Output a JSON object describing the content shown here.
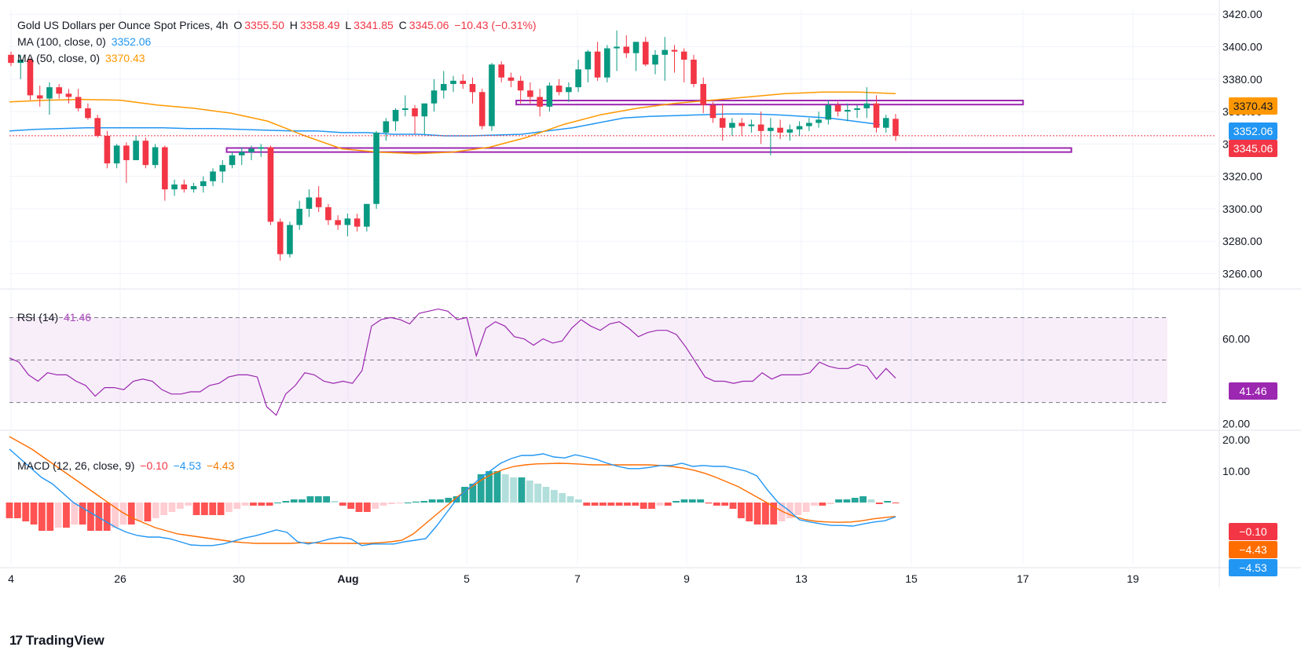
{
  "header": {
    "symbol": "Gold US Dollars per Ounce Spot Prices, 4h",
    "o_label": "O",
    "o_value": "3355.50",
    "h_label": "H",
    "h_value": "3358.49",
    "l_label": "L",
    "l_value": "3341.85",
    "c_label": "C",
    "c_value": "3345.06",
    "change": "−10.43 (−0.31%)"
  },
  "ma100": {
    "label": "MA (100, close, 0)",
    "value": "3352.06"
  },
  "ma50": {
    "label": "MA (50, close, 0)",
    "value": "3370.43"
  },
  "rsi": {
    "label": "RSI (14)",
    "value": "41.46"
  },
  "macd": {
    "label": "MACD (12, 26, close, 9)",
    "hist": "−0.10",
    "macd": "−4.53",
    "signal": "−4.43"
  },
  "price_tags": {
    "ma50": "3370.43",
    "ma100": "3352.06",
    "close": "3345.06"
  },
  "macd_tags": {
    "hist": "−0.10",
    "signal": "−4.43",
    "macd": "−4.53"
  },
  "footer": {
    "brand": "TradingView",
    "logo": "17"
  },
  "colors": {
    "up": "#089981",
    "down": "#f23645",
    "ma100": "#2196f3",
    "ma50": "#ff9800",
    "rsi": "#9c27b0",
    "macd": "#2196f3",
    "signal": "#ff6d00",
    "hist_up_strong": "#26a69a",
    "hist_up_weak": "#b2dfdb",
    "hist_dn_strong": "#ff5252",
    "hist_dn_weak": "#ffcdd2",
    "zone": "#9c27b0"
  },
  "chart_data": [
    {
      "type": "candlestick",
      "title": "Gold US Dollars per Ounce Spot Prices, 4h",
      "x_ticks": [
        "4",
        "26",
        "30",
        "Aug",
        "5",
        "7",
        "9",
        "13",
        "15",
        "17",
        "19"
      ],
      "y_ticks": [
        "3420.00",
        "3400.00",
        "3380.00",
        "3360.00",
        "3340.00",
        "3320.00",
        "3300.00",
        "3280.00",
        "3260.00"
      ],
      "ylim": [
        3252,
        3423
      ],
      "candles": [
        [
          3395,
          3397,
          3388,
          3390
        ],
        [
          3390,
          3395,
          3380,
          3392
        ],
        [
          3392,
          3393,
          3367,
          3370
        ],
        [
          3370,
          3376,
          3363,
          3368
        ],
        [
          3368,
          3378,
          3358,
          3375
        ],
        [
          3375,
          3377,
          3368,
          3371
        ],
        [
          3371,
          3374,
          3365,
          3369
        ],
        [
          3369,
          3374,
          3360,
          3362
        ],
        [
          3362,
          3365,
          3355,
          3356
        ],
        [
          3356,
          3358,
          3344,
          3345
        ],
        [
          3345,
          3348,
          3325,
          3328
        ],
        [
          3328,
          3340,
          3325,
          3339
        ],
        [
          3339,
          3341,
          3316,
          3330
        ],
        [
          3330,
          3345,
          3330,
          3342
        ],
        [
          3342,
          3344,
          3325,
          3327
        ],
        [
          3327,
          3340,
          3325,
          3338
        ],
        [
          3338,
          3339,
          3305,
          3312
        ],
        [
          3312,
          3318,
          3308,
          3315
        ],
        [
          3315,
          3318,
          3310,
          3312
        ],
        [
          3312,
          3316,
          3310,
          3314
        ],
        [
          3314,
          3320,
          3310,
          3317
        ],
        [
          3317,
          3325,
          3314,
          3323
        ],
        [
          3323,
          3330,
          3316,
          3327
        ],
        [
          3327,
          3335,
          3325,
          3333
        ],
        [
          3333,
          3338,
          3327,
          3335
        ],
        [
          3335,
          3339,
          3330,
          3337
        ],
        [
          3337,
          3340,
          3332,
          3338
        ],
        [
          3338,
          3339,
          3290,
          3292
        ],
        [
          3292,
          3294,
          3268,
          3272
        ],
        [
          3272,
          3292,
          3270,
          3290
        ],
        [
          3290,
          3305,
          3287,
          3300
        ],
        [
          3300,
          3312,
          3295,
          3307
        ],
        [
          3307,
          3314,
          3298,
          3301
        ],
        [
          3301,
          3303,
          3290,
          3293
        ],
        [
          3293,
          3296,
          3287,
          3290
        ],
        [
          3290,
          3297,
          3283,
          3294
        ],
        [
          3294,
          3297,
          3286,
          3289
        ],
        [
          3289,
          3303,
          3286,
          3303
        ],
        [
          3303,
          3348,
          3300,
          3347
        ],
        [
          3347,
          3356,
          3342,
          3354
        ],
        [
          3354,
          3362,
          3348,
          3361
        ],
        [
          3361,
          3370,
          3357,
          3362
        ],
        [
          3362,
          3364,
          3346,
          3357
        ],
        [
          3357,
          3365,
          3346,
          3365
        ],
        [
          3365,
          3380,
          3360,
          3373
        ],
        [
          3373,
          3385,
          3368,
          3377
        ],
        [
          3377,
          3382,
          3372,
          3379
        ],
        [
          3379,
          3383,
          3374,
          3377
        ],
        [
          3377,
          3381,
          3365,
          3372
        ],
        [
          3372,
          3374,
          3349,
          3351
        ],
        [
          3351,
          3390,
          3348,
          3389
        ],
        [
          3389,
          3391,
          3378,
          3381
        ],
        [
          3381,
          3384,
          3375,
          3379
        ],
        [
          3379,
          3382,
          3365,
          3373
        ],
        [
          3373,
          3378,
          3365,
          3369
        ],
        [
          3369,
          3374,
          3357,
          3363
        ],
        [
          3363,
          3378,
          3360,
          3376
        ],
        [
          3376,
          3380,
          3370,
          3372
        ],
        [
          3372,
          3378,
          3366,
          3375
        ],
        [
          3375,
          3392,
          3372,
          3386
        ],
        [
          3386,
          3398,
          3378,
          3397
        ],
        [
          3397,
          3403,
          3379,
          3381
        ],
        [
          3381,
          3401,
          3378,
          3399
        ],
        [
          3399,
          3410,
          3385,
          3400
        ],
        [
          3400,
          3407,
          3393,
          3396
        ],
        [
          3396,
          3402,
          3385,
          3403
        ],
        [
          3403,
          3406,
          3388,
          3389
        ],
        [
          3389,
          3398,
          3383,
          3395
        ],
        [
          3395,
          3406,
          3379,
          3398
        ],
        [
          3398,
          3401,
          3384,
          3397
        ],
        [
          3397,
          3399,
          3378,
          3392
        ],
        [
          3392,
          3395,
          3375,
          3377
        ],
        [
          3377,
          3381,
          3359,
          3364
        ],
        [
          3364,
          3366,
          3353,
          3356
        ],
        [
          3356,
          3365,
          3342,
          3350
        ],
        [
          3350,
          3356,
          3345,
          3353
        ],
        [
          3353,
          3356,
          3345,
          3351
        ],
        [
          3351,
          3355,
          3347,
          3352
        ],
        [
          3352,
          3360,
          3340,
          3348
        ],
        [
          3348,
          3356,
          3333,
          3350
        ],
        [
          3350,
          3355,
          3343,
          3347
        ],
        [
          3347,
          3352,
          3342,
          3349
        ],
        [
          3349,
          3354,
          3345,
          3351
        ],
        [
          3351,
          3356,
          3348,
          3353
        ],
        [
          3353,
          3360,
          3350,
          3355
        ],
        [
          3355,
          3367,
          3352,
          3364
        ],
        [
          3364,
          3366,
          3357,
          3360
        ],
        [
          3360,
          3365,
          3354,
          3361
        ],
        [
          3361,
          3364,
          3356,
          3362
        ],
        [
          3362,
          3375,
          3356,
          3365
        ],
        [
          3365,
          3370,
          3347,
          3350
        ],
        [
          3350,
          3358,
          3347,
          3356
        ],
        [
          3355.5,
          3358.49,
          3341.85,
          3345.06
        ]
      ],
      "ma100": [
        3348,
        3349,
        3349.5,
        3350,
        3350,
        3350,
        3350,
        3349.5,
        3349.5,
        3349,
        3348.5,
        3348,
        3348,
        3347,
        3347,
        3346,
        3346,
        3345,
        3345,
        3345.5,
        3346,
        3348,
        3350,
        3353,
        3356,
        3357,
        3357.5,
        3358,
        3358.5,
        3358.5,
        3358,
        3357,
        3356,
        3354,
        3352
      ],
      "ma50": [
        3366,
        3367,
        3367.5,
        3367,
        3364,
        3362,
        3359,
        3354,
        3345,
        3337,
        3335,
        3334,
        3335,
        3338,
        3344,
        3352,
        3358,
        3362,
        3365,
        3367,
        3369,
        3371,
        3372,
        3372,
        3371
      ],
      "zones": [
        {
          "y_top": 3366.8,
          "y_bottom": 3364.3,
          "x_start": 0.42,
          "x_end": 0.84
        },
        {
          "y_top": 3337.5,
          "y_bottom": 3335.0,
          "x_start": 0.18,
          "x_end": 0.88
        }
      ],
      "last_price": 3345.06
    },
    {
      "type": "line",
      "title": "RSI (14)",
      "y_ticks": [
        "60.00",
        "20.00"
      ],
      "ylim": [
        18,
        82
      ],
      "bands": [
        70,
        50,
        30
      ],
      "values": [
        51,
        49,
        43,
        40,
        44,
        43,
        43,
        40,
        38,
        33,
        37,
        37,
        36,
        40,
        41,
        40,
        36,
        34,
        34,
        35,
        35,
        38,
        39,
        42,
        43,
        43,
        42,
        28,
        24,
        34,
        38,
        44,
        43,
        40,
        39,
        40,
        39,
        45,
        66,
        69,
        70,
        69,
        67,
        72,
        73,
        74,
        73,
        69,
        70,
        52,
        65,
        68,
        66,
        61,
        60,
        57,
        60,
        58,
        59,
        65,
        69,
        66,
        64,
        67,
        68,
        65,
        61,
        63,
        64,
        64,
        62,
        56,
        49,
        42,
        40,
        40,
        39,
        40,
        40,
        44,
        41,
        43,
        43,
        43,
        44,
        49,
        47,
        46,
        46,
        48,
        47,
        41,
        46,
        41.46
      ]
    },
    {
      "type": "line",
      "title": "MACD (12, 26, close, 9)",
      "y_ticks": [
        "20.00",
        "10.00"
      ],
      "ylim": [
        -20,
        22
      ],
      "macd": [
        17,
        14,
        11,
        8,
        6,
        3,
        0,
        -2,
        -4,
        -6,
        -8,
        -9.5,
        -10.5,
        -11,
        -11,
        -11.5,
        -12.5,
        -13.5,
        -13.7,
        -13.7,
        -13.2,
        -12.3,
        -11.3,
        -10.6,
        -9.7,
        -8.7,
        -9.5,
        -12.5,
        -13.2,
        -12.5,
        -11.6,
        -11,
        -11.6,
        -13.7,
        -13.2,
        -13.2,
        -13.2,
        -12.5,
        -12,
        -11.5,
        -7.5,
        -3,
        1.5,
        4.5,
        7.5,
        10,
        12.5,
        14,
        15,
        15,
        15.5,
        14.5,
        14.2,
        15.2,
        14.5,
        13.7,
        12.5,
        11.5,
        10.8,
        10.8,
        11.2,
        11.8,
        11.8,
        12.5,
        11.5,
        11.8,
        11.5,
        11.5,
        10.8,
        10,
        8.5,
        4,
        0,
        -2.5,
        -5.5,
        -6.2,
        -6.8,
        -7.3,
        -7.3,
        -7.5,
        -6.8,
        -6.2,
        -5.8,
        -4.53
      ],
      "signal": [
        21,
        19,
        17,
        14.5,
        12,
        9.5,
        7,
        4.5,
        2,
        -0.5,
        -3,
        -5,
        -6.5,
        -8,
        -9,
        -10,
        -10.5,
        -11,
        -11.5,
        -12,
        -12.5,
        -12.8,
        -13,
        -13,
        -13,
        -13,
        -12.8,
        -12.8,
        -13,
        -13,
        -13,
        -13,
        -13,
        -12.8,
        -12.5,
        -12,
        -10,
        -7,
        -4,
        -1,
        2,
        4.5,
        7,
        9,
        10.5,
        11.5,
        12,
        12.3,
        12.4,
        12.5,
        12.4,
        12.2,
        12,
        12,
        12,
        12,
        12,
        12,
        11.8,
        11.5,
        11,
        10.3,
        9.3,
        8,
        6.5,
        5,
        3,
        1,
        -1,
        -3,
        -4.5,
        -5.5,
        -6,
        -6.2,
        -6.3,
        -6.2,
        -5.8,
        -5.2,
        -4.8,
        -4.43
      ],
      "hist": [
        -5,
        -5,
        -6,
        -7,
        -9,
        -9,
        -8,
        -8,
        -7,
        -7,
        -9,
        -9,
        -9,
        -8,
        -7,
        -7,
        -6,
        -6,
        -5,
        -4,
        -3,
        -2,
        -1,
        -4,
        -4,
        -4,
        -4,
        -3,
        -2,
        -1,
        -1,
        -1,
        -1,
        0,
        0.5,
        1,
        1,
        2,
        2,
        2,
        0.5,
        -1,
        -2,
        -3,
        -3,
        -2,
        -1,
        -0.5,
        -0.3,
        0,
        0.3,
        0.5,
        1,
        1,
        1.5,
        2,
        5,
        6,
        9,
        10,
        10,
        9,
        8,
        8,
        7,
        6,
        5,
        4,
        3,
        2,
        1,
        -1,
        -1,
        -1,
        -1,
        -1,
        -1,
        -1,
        -2,
        -2,
        -1,
        -1,
        0.5,
        1,
        1,
        1,
        -0.3,
        -1,
        -1,
        -2,
        -5,
        -6,
        -7,
        -7,
        -7,
        -6,
        -5,
        -4,
        -3,
        -1,
        -1,
        -0.5,
        1,
        1,
        1.5,
        2,
        1,
        -0.5,
        0.5,
        -0.1
      ]
    }
  ]
}
